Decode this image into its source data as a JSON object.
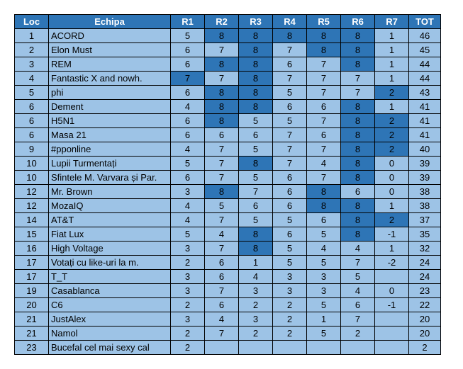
{
  "headers": [
    "Loc",
    "Echipa",
    "R1",
    "R2",
    "R3",
    "R4",
    "R5",
    "R6",
    "R7",
    "TOT"
  ],
  "rows": [
    {
      "loc": "1",
      "team": "ACORD",
      "r": [
        "5",
        "8",
        "8",
        "8",
        "8",
        "8",
        "1"
      ],
      "hl": [
        false,
        true,
        true,
        true,
        true,
        true,
        false
      ],
      "tot": "46"
    },
    {
      "loc": "2",
      "team": "Elon Must",
      "r": [
        "6",
        "7",
        "8",
        "7",
        "8",
        "8",
        "1"
      ],
      "hl": [
        false,
        false,
        true,
        false,
        true,
        true,
        false
      ],
      "tot": "45"
    },
    {
      "loc": "3",
      "team": "REM",
      "r": [
        "6",
        "8",
        "8",
        "6",
        "7",
        "8",
        "1"
      ],
      "hl": [
        false,
        true,
        true,
        false,
        false,
        true,
        false
      ],
      "tot": "44"
    },
    {
      "loc": "4",
      "team": "Fantastic X and nowh.",
      "r": [
        "7",
        "7",
        "8",
        "7",
        "7",
        "7",
        "1"
      ],
      "hl": [
        true,
        false,
        true,
        false,
        false,
        false,
        false
      ],
      "tot": "44"
    },
    {
      "loc": "5",
      "team": "phi",
      "r": [
        "6",
        "8",
        "8",
        "5",
        "7",
        "7",
        "2"
      ],
      "hl": [
        false,
        true,
        true,
        false,
        false,
        false,
        true
      ],
      "tot": "43"
    },
    {
      "loc": "6",
      "team": "Dement",
      "r": [
        "4",
        "8",
        "8",
        "6",
        "6",
        "8",
        "1"
      ],
      "hl": [
        false,
        true,
        true,
        false,
        false,
        true,
        false
      ],
      "tot": "41"
    },
    {
      "loc": "6",
      "team": "H5N1",
      "r": [
        "6",
        "8",
        "5",
        "5",
        "7",
        "8",
        "2"
      ],
      "hl": [
        false,
        true,
        false,
        false,
        false,
        true,
        true
      ],
      "tot": "41"
    },
    {
      "loc": "6",
      "team": "Masa 21",
      "r": [
        "6",
        "6",
        "6",
        "7",
        "6",
        "8",
        "2"
      ],
      "hl": [
        false,
        false,
        false,
        false,
        false,
        true,
        true
      ],
      "tot": "41"
    },
    {
      "loc": "9",
      "team": "#pponline",
      "r": [
        "4",
        "7",
        "5",
        "7",
        "7",
        "8",
        "2"
      ],
      "hl": [
        false,
        false,
        false,
        false,
        false,
        true,
        true
      ],
      "tot": "40"
    },
    {
      "loc": "10",
      "team": "Lupii Turmentați",
      "r": [
        "5",
        "7",
        "8",
        "7",
        "4",
        "8",
        "0"
      ],
      "hl": [
        false,
        false,
        true,
        false,
        false,
        true,
        false
      ],
      "tot": "39"
    },
    {
      "loc": "10",
      "team": "Sfintele M. Varvara și Par.",
      "r": [
        "6",
        "7",
        "5",
        "6",
        "7",
        "8",
        "0"
      ],
      "hl": [
        false,
        false,
        false,
        false,
        false,
        true,
        false
      ],
      "tot": "39"
    },
    {
      "loc": "12",
      "team": "Mr. Brown",
      "r": [
        "3",
        "8",
        "7",
        "6",
        "8",
        "6",
        "0"
      ],
      "hl": [
        false,
        true,
        false,
        false,
        true,
        false,
        false
      ],
      "tot": "38"
    },
    {
      "loc": "12",
      "team": "MozaIQ",
      "r": [
        "4",
        "5",
        "6",
        "6",
        "8",
        "8",
        "1"
      ],
      "hl": [
        false,
        false,
        false,
        false,
        true,
        true,
        false
      ],
      "tot": "38"
    },
    {
      "loc": "14",
      "team": "AT&T",
      "r": [
        "4",
        "7",
        "5",
        "5",
        "6",
        "8",
        "2"
      ],
      "hl": [
        false,
        false,
        false,
        false,
        false,
        true,
        true
      ],
      "tot": "37"
    },
    {
      "loc": "15",
      "team": "Fiat Lux",
      "r": [
        "5",
        "4",
        "8",
        "6",
        "5",
        "8",
        "-1"
      ],
      "hl": [
        false,
        false,
        true,
        false,
        false,
        true,
        false
      ],
      "tot": "35"
    },
    {
      "loc": "16",
      "team": "High Voltage",
      "r": [
        "3",
        "7",
        "8",
        "5",
        "4",
        "4",
        "1"
      ],
      "hl": [
        false,
        false,
        true,
        false,
        false,
        false,
        false
      ],
      "tot": "32"
    },
    {
      "loc": "17",
      "team": "Votați cu like-uri la m.",
      "r": [
        "2",
        "6",
        "1",
        "5",
        "5",
        "7",
        "-2"
      ],
      "hl": [
        false,
        false,
        false,
        false,
        false,
        false,
        false
      ],
      "tot": "24"
    },
    {
      "loc": "17",
      "team": "T_T",
      "r": [
        "3",
        "6",
        "4",
        "3",
        "3",
        "5",
        ""
      ],
      "hl": [
        false,
        false,
        false,
        false,
        false,
        false,
        false
      ],
      "tot": "24"
    },
    {
      "loc": "19",
      "team": "Casablanca",
      "r": [
        "3",
        "7",
        "3",
        "3",
        "3",
        "4",
        "0"
      ],
      "hl": [
        false,
        false,
        false,
        false,
        false,
        false,
        false
      ],
      "tot": "23"
    },
    {
      "loc": "20",
      "team": "C6",
      "r": [
        "2",
        "6",
        "2",
        "2",
        "5",
        "6",
        "-1"
      ],
      "hl": [
        false,
        false,
        false,
        false,
        false,
        false,
        false
      ],
      "tot": "22"
    },
    {
      "loc": "21",
      "team": "JustAlex",
      "r": [
        "3",
        "4",
        "3",
        "2",
        "1",
        "7",
        ""
      ],
      "hl": [
        false,
        false,
        false,
        false,
        false,
        false,
        false
      ],
      "tot": "20"
    },
    {
      "loc": "21",
      "team": "Namol",
      "r": [
        "2",
        "7",
        "2",
        "2",
        "5",
        "2",
        ""
      ],
      "hl": [
        false,
        false,
        false,
        false,
        false,
        false,
        false
      ],
      "tot": "20"
    },
    {
      "loc": "23",
      "team": "Bucefal cel mai sexy cal",
      "r": [
        "2",
        "",
        "",
        "",
        "",
        "",
        ""
      ],
      "hl": [
        false,
        false,
        false,
        false,
        false,
        false,
        false
      ],
      "tot": "2"
    }
  ],
  "colors": {
    "header": "#2e75b6",
    "cell": "#9dc3e6",
    "highlight": "#2e75b6"
  }
}
